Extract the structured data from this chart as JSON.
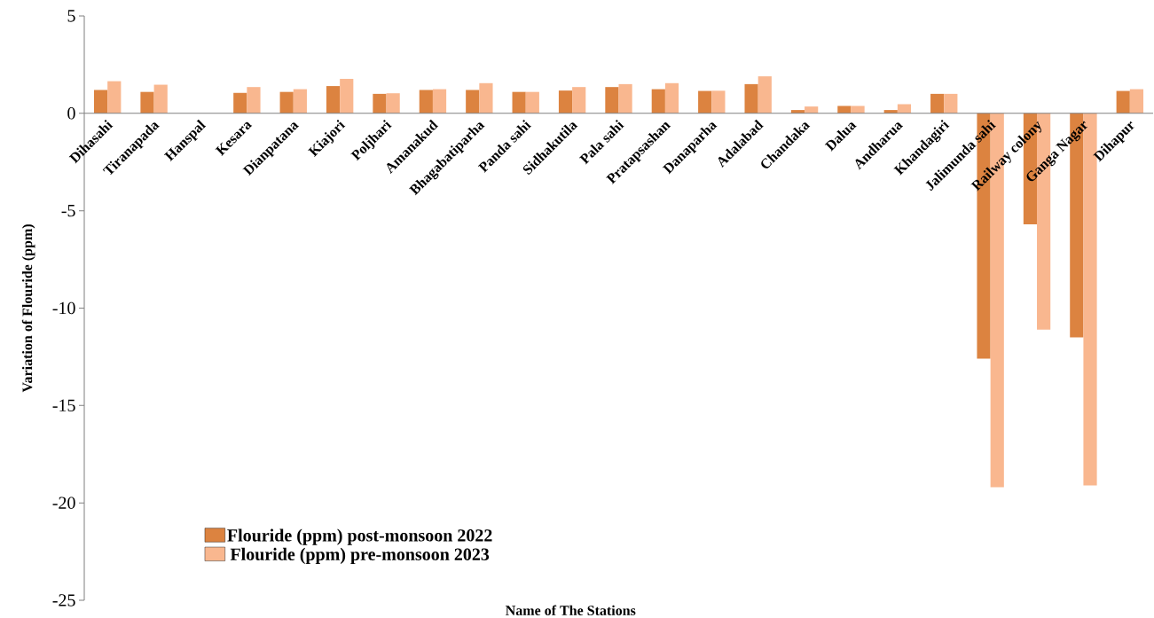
{
  "chart_data": {
    "type": "bar",
    "xlabel": "Name of The Stations",
    "ylabel": "Variation of Flouride (ppm)",
    "categories": [
      "Dihasahi",
      "Tiranapada",
      "Hanspal",
      "Kesara",
      "Dianpatana",
      "Kiajori",
      "Poljhari",
      "Amanakud",
      "Bhagabatiparha",
      "Panda sahi",
      "Sidhakutila",
      "Pala sahi",
      "Pratapsashan",
      "Danaparha",
      "Adalabad",
      "Chandaka",
      "Dalua",
      "Andharua",
      "Khandagiri",
      "Jalimunda sahi",
      "Railway colony",
      "Ganga Nagar",
      "Dihapur"
    ],
    "series": [
      {
        "name": "Flouride (ppm) post-monsoon 2022",
        "color": "#dc8340",
        "values": [
          1.2,
          1.1,
          0,
          1.05,
          1.1,
          1.4,
          1.0,
          1.2,
          1.2,
          1.1,
          1.17,
          1.35,
          1.24,
          1.15,
          1.5,
          0.17,
          0.38,
          0.17,
          1.0,
          -12.6,
          -5.7,
          -11.5,
          1.15
        ]
      },
      {
        "name": "Flouride (ppm) pre-monsoon 2023",
        "color": "#f9b78f",
        "values": [
          1.65,
          1.47,
          0,
          1.35,
          1.24,
          1.77,
          1.03,
          1.24,
          1.55,
          1.1,
          1.35,
          1.5,
          1.55,
          1.16,
          1.9,
          0.35,
          0.38,
          0.47,
          1.0,
          -19.2,
          -11.1,
          -19.1,
          1.24
        ]
      }
    ],
    "ylim": [
      -25,
      5
    ],
    "yticks": [
      -25,
      -20,
      -15,
      -10,
      -5,
      0,
      5
    ],
    "grid": false,
    "legend": "bottom left"
  }
}
